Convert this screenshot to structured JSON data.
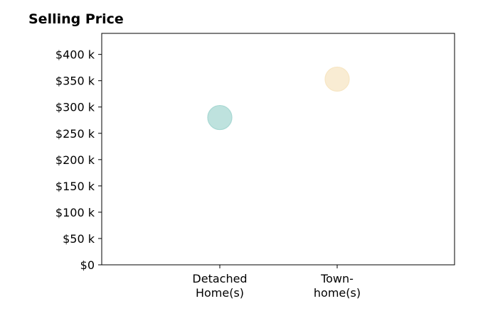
{
  "chart_data": {
    "type": "scatter",
    "title": "Selling Price",
    "xlabel": "",
    "ylabel": "",
    "categories": [
      [
        "Detached",
        "Home(s)"
      ],
      [
        "Town-",
        "home(s)"
      ]
    ],
    "series": [
      {
        "category": 0,
        "value": 280000,
        "color": "#a8d8d3"
      },
      {
        "category": 1,
        "value": 353000,
        "color": "#f7e6c4"
      }
    ],
    "ylim": [
      0,
      440000
    ],
    "yticks": [
      {
        "value": 0,
        "label": "$0"
      },
      {
        "value": 50000,
        "label": "$50 k"
      },
      {
        "value": 100000,
        "label": "$100 k"
      },
      {
        "value": 150000,
        "label": "$150 k"
      },
      {
        "value": 200000,
        "label": "$200 k"
      },
      {
        "value": 250000,
        "label": "$250 k"
      },
      {
        "value": 300000,
        "label": "$300 k"
      },
      {
        "value": 350000,
        "label": "$350 k"
      },
      {
        "value": 400000,
        "label": "$400 k"
      }
    ],
    "grid": false,
    "legend": "none"
  }
}
